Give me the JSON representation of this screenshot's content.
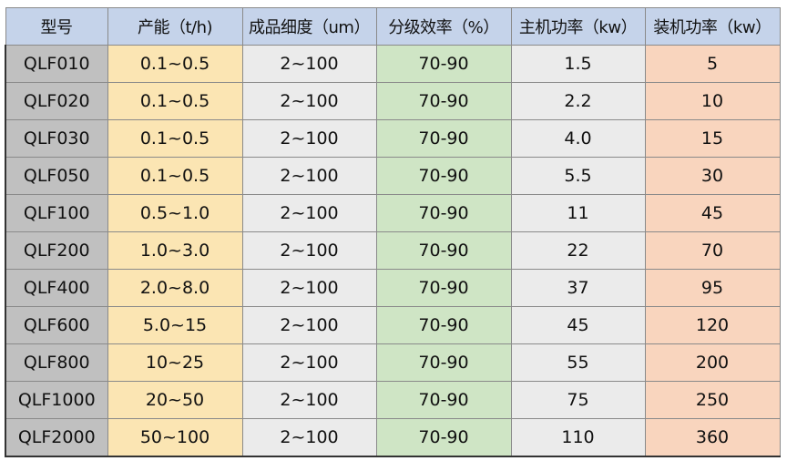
{
  "colors": {
    "header": "#c5d3ea",
    "model": "#c0c0c0",
    "capacity": "#fbe5b3",
    "fineness": "#ebebeb",
    "efficiency": "#cfe5c5",
    "main_power": "#ebebeb",
    "installed_power": "#f9d5be"
  },
  "headers": [
    "型号",
    "产能（t/h)",
    "成品细度（um）",
    "分级效率（%）",
    "主机功率（kw）",
    "装机功率（kw）"
  ],
  "rows": [
    [
      "QLF010",
      "0.1~0.5",
      "2~100",
      "70-90",
      "1.5",
      "5"
    ],
    [
      "QLF020",
      "0.1~0.5",
      "2~100",
      "70-90",
      "2.2",
      "10"
    ],
    [
      "QLF030",
      "0.1~0.5",
      "2~100",
      "70-90",
      "4.0",
      "15"
    ],
    [
      "QLF050",
      "0.1~0.5",
      "2~100",
      "70-90",
      "5.5",
      "30"
    ],
    [
      "QLF100",
      "0.5~1.0",
      "2~100",
      "70-90",
      "11",
      "45"
    ],
    [
      "QLF200",
      "1.0~3.0",
      "2~100",
      "70-90",
      "22",
      "70"
    ],
    [
      "QLF400",
      "2.0~8.0",
      "2~100",
      "70-90",
      "37",
      "95"
    ],
    [
      "QLF600",
      "5.0~15",
      "2~100",
      "70-90",
      "45",
      "120"
    ],
    [
      "QLF800",
      "10~25",
      "2~100",
      "70-90",
      "55",
      "200"
    ],
    [
      "QLF1000",
      "20~50",
      "2~100",
      "70-90",
      "75",
      "250"
    ],
    [
      "QLF2000",
      "50~100",
      "2~100",
      "70-90",
      "110",
      "360"
    ]
  ]
}
